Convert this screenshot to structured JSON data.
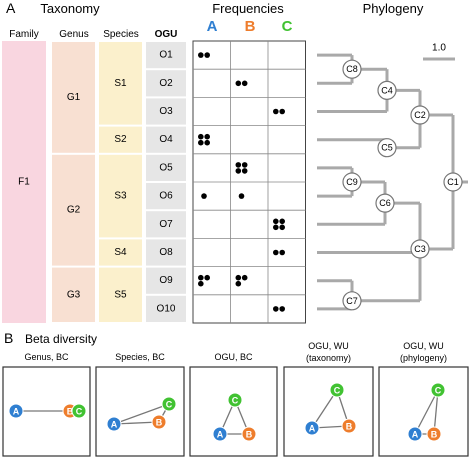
{
  "panelA": {
    "letter": "A",
    "taxonomy_title": "Taxonomy",
    "frequencies_title": "Frequencies",
    "phylogeny_title": "Phylogeny",
    "col_headers": {
      "family": "Family",
      "genus": "Genus",
      "species": "Species",
      "ogu": "OGU"
    },
    "family": {
      "label": "F1",
      "color": "#f9d6e0"
    },
    "genera": [
      {
        "label": "G1",
        "rows": [
          0,
          3
        ]
      },
      {
        "label": "G2",
        "rows": [
          4,
          7
        ]
      },
      {
        "label": "G3",
        "rows": [
          8,
          9
        ]
      }
    ],
    "genus_color": "#f8e0d2",
    "species": [
      {
        "label": "S1",
        "rows": [
          0,
          2
        ]
      },
      {
        "label": "S2",
        "rows": [
          3,
          3
        ]
      },
      {
        "label": "S3",
        "rows": [
          4,
          6
        ]
      },
      {
        "label": "S4",
        "rows": [
          7,
          7
        ]
      },
      {
        "label": "S5",
        "rows": [
          8,
          9
        ]
      }
    ],
    "species_color": "#fbf0cc",
    "ogus": [
      "O1",
      "O2",
      "O3",
      "O4",
      "O5",
      "O6",
      "O7",
      "O8",
      "O9",
      "O10"
    ],
    "ogu_color": "#e6e6e6",
    "samples": [
      {
        "label": "A",
        "color": "#2f7fd1"
      },
      {
        "label": "B",
        "color": "#ee7d2c"
      },
      {
        "label": "C",
        "color": "#41c232"
      }
    ],
    "frequencies": [
      [
        2,
        0,
        0
      ],
      [
        0,
        2,
        0
      ],
      [
        0,
        0,
        2
      ],
      [
        4,
        0,
        0
      ],
      [
        0,
        4,
        0
      ],
      [
        1,
        1,
        0
      ],
      [
        0,
        0,
        4
      ],
      [
        0,
        0,
        2
      ],
      [
        3,
        3,
        0
      ],
      [
        0,
        0,
        2
      ]
    ],
    "phylogeny": {
      "scale_label": "1.0",
      "nodes": [
        "C1",
        "C2",
        "C3",
        "C4",
        "C5",
        "C6",
        "C7",
        "C8",
        "C9"
      ]
    }
  },
  "panelB": {
    "letter": "B",
    "title": "Beta diversity",
    "plots": [
      {
        "label": [
          "Genus, BC"
        ]
      },
      {
        "label": [
          "Species, BC"
        ]
      },
      {
        "label": [
          "OGU, BC"
        ]
      },
      {
        "label": [
          "OGU, WU",
          "(taxonomy)"
        ]
      },
      {
        "label": [
          "OGU, WU",
          "(phylogeny)"
        ]
      }
    ]
  }
}
